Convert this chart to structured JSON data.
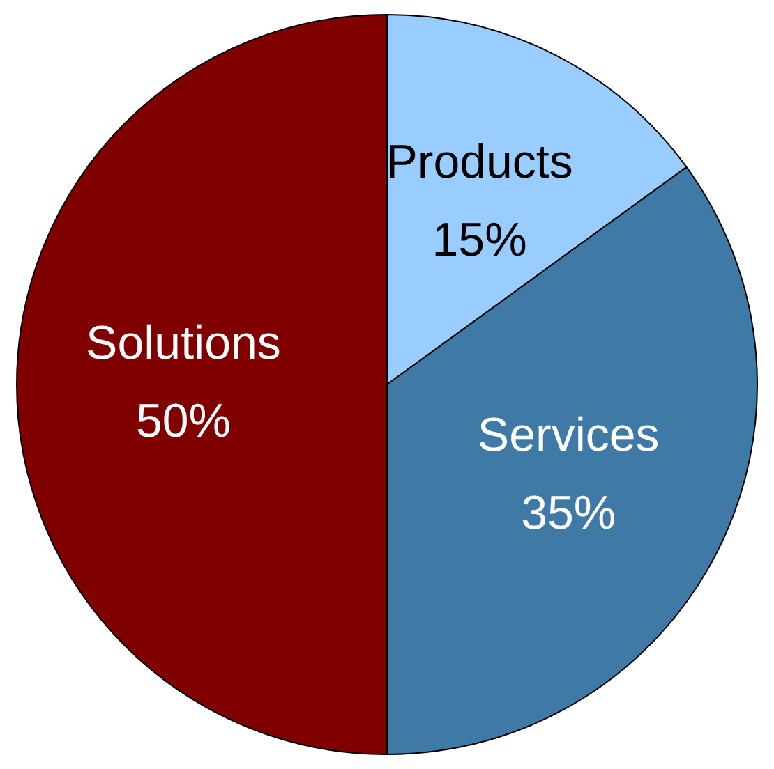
{
  "chart_data": {
    "type": "pie",
    "categories": [
      "Products",
      "Services",
      "Solutions"
    ],
    "values": [
      15,
      35,
      50
    ],
    "value_labels": [
      "15%",
      "35%",
      "50%"
    ],
    "colors": [
      "#99ccff",
      "#3f7aa6",
      "#800000"
    ],
    "legend": false
  }
}
